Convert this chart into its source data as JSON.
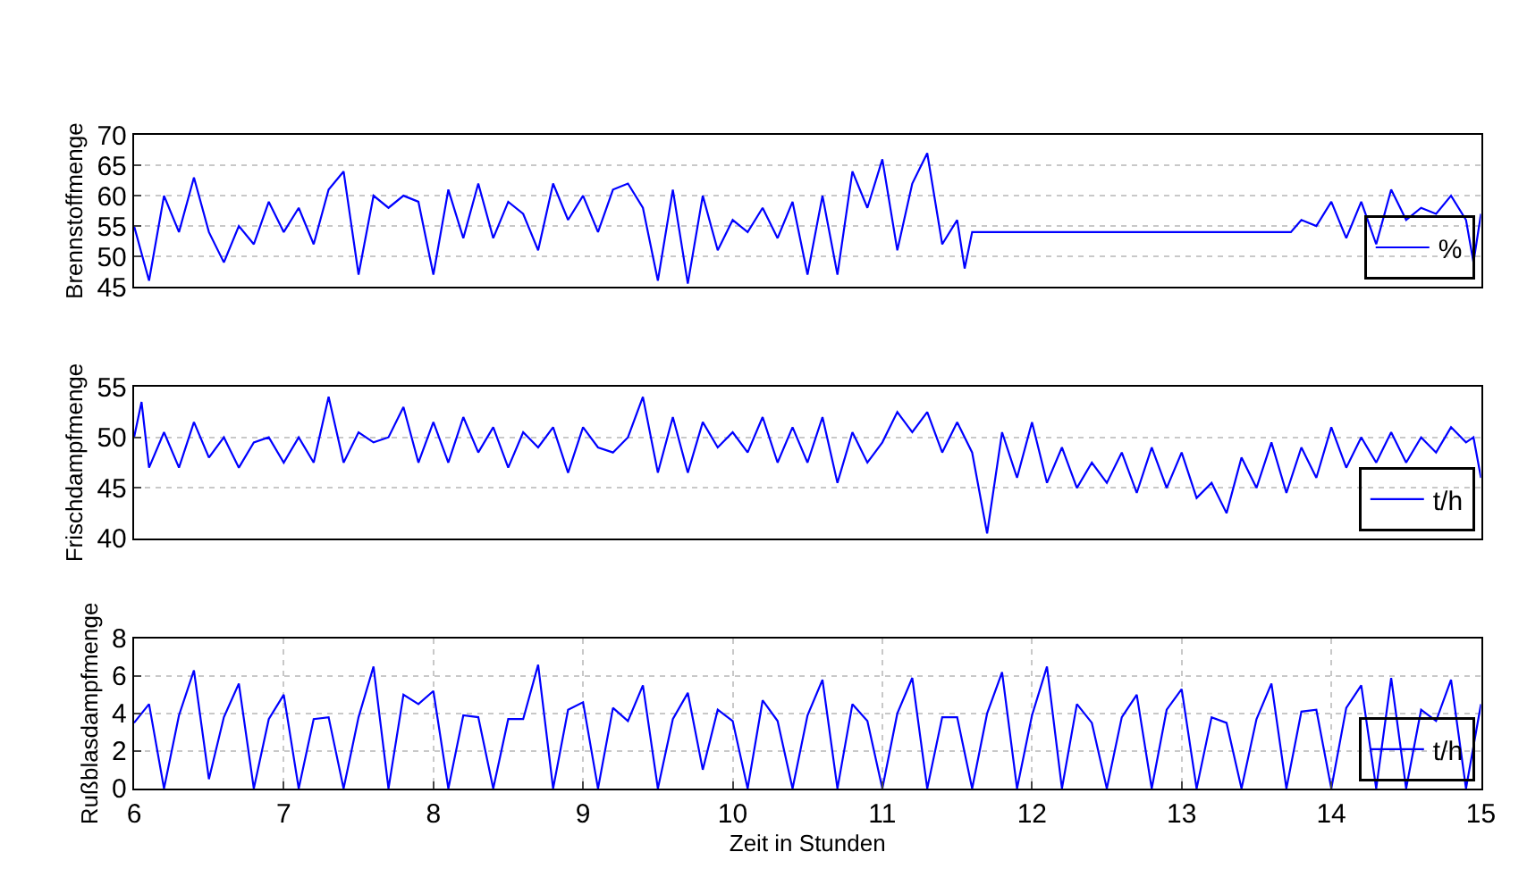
{
  "chart_data": [
    {
      "type": "line",
      "ylabel": "Brennstoffmenge",
      "xlim": [
        6,
        15
      ],
      "ylim": [
        45,
        70
      ],
      "yticks": [
        45,
        50,
        55,
        60,
        65,
        70
      ],
      "tick_labels": "y",
      "grid": "y",
      "legend": "bottom right",
      "series": [
        {
          "name": "%",
          "color": "#0000ff",
          "x": [
            6.0,
            6.1,
            6.2,
            6.3,
            6.4,
            6.5,
            6.6,
            6.7,
            6.8,
            6.9,
            7.0,
            7.1,
            7.2,
            7.3,
            7.4,
            7.5,
            7.6,
            7.7,
            7.8,
            7.9,
            8.0,
            8.1,
            8.2,
            8.3,
            8.4,
            8.5,
            8.6,
            8.7,
            8.8,
            8.9,
            9.0,
            9.1,
            9.2,
            9.3,
            9.4,
            9.5,
            9.6,
            9.7,
            9.8,
            9.9,
            10.0,
            10.1,
            10.2,
            10.3,
            10.4,
            10.5,
            10.6,
            10.7,
            10.8,
            10.9,
            11.0,
            11.1,
            11.2,
            11.3,
            11.4,
            11.5,
            11.55,
            11.6,
            13.73,
            13.8,
            13.9,
            14.0,
            14.1,
            14.2,
            14.3,
            14.4,
            14.5,
            14.6,
            14.7,
            14.8,
            14.9,
            14.95,
            15.0
          ],
          "values": [
            55,
            46,
            60,
            54,
            63,
            54,
            49,
            55,
            52,
            59,
            54,
            58,
            52,
            61,
            64,
            47,
            60,
            58,
            60,
            59,
            47,
            61,
            53,
            62,
            53,
            59,
            57,
            51,
            62,
            56,
            60,
            54,
            61,
            62,
            58,
            46,
            61,
            45.5,
            60,
            51,
            56,
            54,
            58,
            53,
            59,
            47,
            60,
            47,
            64,
            58,
            66,
            51,
            62,
            67,
            52,
            56,
            48,
            54,
            54,
            56,
            55,
            59,
            53,
            59,
            52,
            61,
            56,
            58,
            57,
            60,
            56,
            49,
            57
          ]
        }
      ]
    },
    {
      "type": "line",
      "ylabel": "Frischdampfmenge",
      "xlim": [
        6,
        15
      ],
      "ylim": [
        40,
        55
      ],
      "yticks": [
        40,
        45,
        50,
        55
      ],
      "tick_labels": "y",
      "grid": "y",
      "legend": "bottom right",
      "series": [
        {
          "name": "t/h",
          "color": "#0000ff",
          "x": [
            6.0,
            6.05,
            6.1,
            6.2,
            6.3,
            6.4,
            6.5,
            6.6,
            6.7,
            6.8,
            6.9,
            7.0,
            7.1,
            7.2,
            7.3,
            7.4,
            7.5,
            7.6,
            7.7,
            7.8,
            7.9,
            8.0,
            8.1,
            8.2,
            8.3,
            8.4,
            8.5,
            8.6,
            8.7,
            8.8,
            8.9,
            9.0,
            9.1,
            9.2,
            9.3,
            9.4,
            9.5,
            9.6,
            9.7,
            9.8,
            9.9,
            10.0,
            10.1,
            10.2,
            10.3,
            10.4,
            10.5,
            10.6,
            10.7,
            10.8,
            10.9,
            11.0,
            11.1,
            11.2,
            11.3,
            11.4,
            11.5,
            11.6,
            11.7,
            11.8,
            11.9,
            12.0,
            12.1,
            12.2,
            12.3,
            12.4,
            12.5,
            12.6,
            12.7,
            12.8,
            12.9,
            13.0,
            13.1,
            13.2,
            13.3,
            13.4,
            13.5,
            13.6,
            13.7,
            13.8,
            13.9,
            14.0,
            14.1,
            14.2,
            14.3,
            14.4,
            14.5,
            14.6,
            14.7,
            14.8,
            14.9,
            14.95,
            15.0
          ],
          "values": [
            50,
            53.5,
            47,
            50.5,
            47,
            51.5,
            48,
            50,
            47,
            49.5,
            50,
            47.5,
            50,
            47.5,
            54,
            47.5,
            50.5,
            49.5,
            50,
            53,
            47.5,
            51.5,
            47.5,
            52,
            48.5,
            51,
            47,
            50.5,
            49,
            51,
            46.5,
            51,
            49,
            48.5,
            50,
            54,
            46.5,
            52,
            46.5,
            51.5,
            49,
            50.5,
            48.5,
            52,
            47.5,
            51,
            47.5,
            52,
            45.5,
            50.5,
            47.5,
            49.5,
            52.5,
            50.5,
            52.5,
            48.5,
            51.5,
            48.5,
            40.5,
            50.5,
            46,
            51.5,
            45.5,
            49,
            45,
            47.5,
            45.5,
            48.5,
            44.5,
            49,
            45,
            48.5,
            44,
            45.5,
            42.5,
            48,
            45,
            49.5,
            44.5,
            49,
            46,
            51,
            47,
            50,
            47.5,
            50.5,
            47.5,
            50,
            48.5,
            51,
            49.5,
            50,
            46
          ]
        }
      ]
    },
    {
      "type": "line",
      "ylabel": "Rußblasdampfmenge",
      "xlabel": "Zeit in Stunden",
      "xlim": [
        6,
        15
      ],
      "xticks": [
        6,
        7,
        8,
        9,
        10,
        11,
        12,
        13,
        14,
        15
      ],
      "ylim": [
        0,
        8
      ],
      "yticks": [
        0,
        2,
        4,
        6,
        8
      ],
      "grid": true,
      "legend": "bottom right",
      "series": [
        {
          "name": "t/h",
          "color": "#0000ff",
          "x": [
            6.0,
            6.1,
            6.2,
            6.3,
            6.4,
            6.5,
            6.6,
            6.7,
            6.8,
            6.9,
            7.0,
            7.1,
            7.2,
            7.3,
            7.4,
            7.5,
            7.6,
            7.7,
            7.8,
            7.9,
            8.0,
            8.1,
            8.2,
            8.3,
            8.4,
            8.5,
            8.6,
            8.7,
            8.8,
            8.9,
            9.0,
            9.1,
            9.2,
            9.3,
            9.4,
            9.5,
            9.6,
            9.7,
            9.8,
            9.9,
            10.0,
            10.1,
            10.2,
            10.3,
            10.4,
            10.5,
            10.6,
            10.7,
            10.8,
            10.9,
            11.0,
            11.1,
            11.2,
            11.3,
            11.4,
            11.5,
            11.6,
            11.7,
            11.8,
            11.9,
            12.0,
            12.1,
            12.2,
            12.3,
            12.4,
            12.5,
            12.6,
            12.7,
            12.8,
            12.9,
            13.0,
            13.1,
            13.2,
            13.3,
            13.4,
            13.5,
            13.6,
            13.7,
            13.8,
            13.9,
            14.0,
            14.1,
            14.2,
            14.3,
            14.4,
            14.5,
            14.6,
            14.7,
            14.8,
            14.9,
            15.0
          ],
          "values": [
            3.5,
            4.5,
            0,
            3.9,
            6.3,
            0.5,
            3.8,
            5.6,
            0,
            3.7,
            5.0,
            0,
            3.7,
            3.8,
            0,
            3.8,
            6.5,
            0,
            5.0,
            4.5,
            5.2,
            0,
            3.9,
            3.8,
            0,
            3.7,
            3.7,
            6.6,
            0,
            4.2,
            4.6,
            0,
            4.3,
            3.6,
            5.5,
            0,
            3.7,
            5.1,
            1.0,
            4.2,
            3.6,
            0,
            4.7,
            3.6,
            0,
            3.9,
            5.8,
            0,
            4.5,
            3.6,
            0,
            4.0,
            5.9,
            0,
            3.8,
            3.8,
            0,
            4.0,
            6.2,
            0,
            3.9,
            6.5,
            0,
            4.5,
            3.5,
            0,
            3.8,
            5.0,
            0,
            4.2,
            5.3,
            0,
            3.8,
            3.5,
            0,
            3.7,
            5.6,
            0,
            4.1,
            4.2,
            0,
            4.3,
            5.5,
            0,
            5.9,
            0,
            4.2,
            3.6,
            5.8,
            0,
            4.5
          ]
        }
      ]
    }
  ]
}
